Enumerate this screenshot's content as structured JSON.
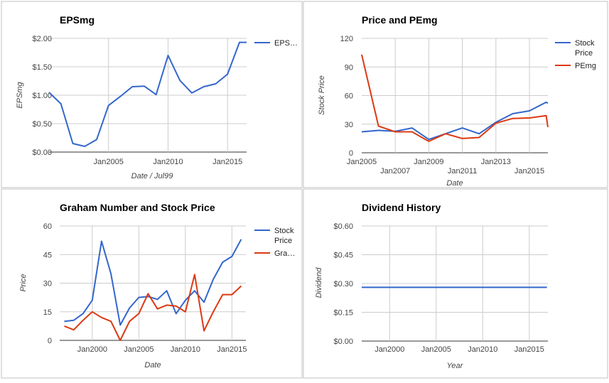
{
  "colors": {
    "blue": "#3366cc",
    "red": "#dc3912",
    "grid": "#cccccc",
    "axis_text": "#444444",
    "title_text": "#000000",
    "border": "#c0c0c0"
  },
  "chart_data": [
    {
      "type": "line",
      "title": "EPSmg",
      "xlabel": "Date / Jul99",
      "ylabel": "EPSmg",
      "x_ticks": [
        "Jan2005",
        "Jan2010",
        "Jan2015"
      ],
      "y_ticks": [
        "$0.00",
        "$0.50",
        "$1.00",
        "$1.50",
        "$2.00"
      ],
      "ylim": [
        0,
        2
      ],
      "xlim": [
        2000,
        2016.6
      ],
      "legend_position": "right",
      "series": [
        {
          "name": "EPS…",
          "color": "#3366cc",
          "x": [
            2000,
            2001,
            2002,
            2003,
            2004,
            2005,
            2006,
            2007,
            2008,
            2009,
            2010,
            2011,
            2012,
            2013,
            2014,
            2015,
            2016,
            2016.6
          ],
          "y": [
            1.05,
            0.85,
            0.15,
            0.1,
            0.22,
            0.82,
            0.98,
            1.15,
            1.16,
            1.01,
            1.7,
            1.26,
            1.04,
            1.15,
            1.2,
            1.37,
            1.93,
            1.93
          ]
        }
      ]
    },
    {
      "type": "line",
      "title": "Price and PEmg",
      "xlabel": "Date",
      "ylabel": "Stock Price",
      "x_ticks_row1": [
        "Jan2005",
        "Jan2009",
        "Jan2013"
      ],
      "x_ticks_row2": [
        "Jan2007",
        "Jan2011",
        "Jan2015"
      ],
      "y_ticks": [
        "0",
        "30",
        "60",
        "90",
        "120"
      ],
      "ylim": [
        0,
        120
      ],
      "xlim": [
        2005,
        2016.1
      ],
      "legend_position": "right",
      "series": [
        {
          "name": "Stock Price",
          "name_lines": [
            "Stock",
            "Price"
          ],
          "color": "#3366cc",
          "x": [
            2005,
            2006,
            2007,
            2008,
            2009,
            2010,
            2011,
            2012,
            2013,
            2014,
            2015,
            2016,
            2016.1
          ],
          "y": [
            22,
            23.5,
            22.5,
            26,
            14,
            20,
            26,
            20,
            32,
            41,
            44,
            53,
            52
          ]
        },
        {
          "name": "PEmg",
          "name_lines": [
            "PEmg"
          ],
          "color": "#dc3912",
          "x": [
            2005,
            2006,
            2007,
            2008,
            2009,
            2010,
            2011,
            2012,
            2013,
            2014,
            2015,
            2016,
            2016.1
          ],
          "y": [
            103,
            28,
            22,
            22,
            12,
            20,
            15,
            16,
            31,
            36,
            36.5,
            39,
            27
          ]
        }
      ]
    },
    {
      "type": "line",
      "title": "Graham Number and Stock Price",
      "xlabel": "Date",
      "ylabel": "Price",
      "x_ticks": [
        "Jan2000",
        "Jan2005",
        "Jan2010",
        "Jan2015"
      ],
      "y_ticks": [
        "0",
        "15",
        "30",
        "45",
        "60"
      ],
      "ylim": [
        0,
        60
      ],
      "xlim": [
        1996.5,
        2016.5
      ],
      "legend_position": "right",
      "series": [
        {
          "name": "Stock Price",
          "name_lines": [
            "Stock",
            "Price"
          ],
          "color": "#3366cc",
          "x": [
            1997,
            1998,
            1999,
            2000,
            2001,
            2002,
            2003,
            2004,
            2005,
            2006,
            2007,
            2008,
            2009,
            2010,
            2011,
            2012,
            2013,
            2014,
            2015,
            2016
          ],
          "y": [
            10,
            10.5,
            14,
            21,
            52,
            35,
            8,
            17,
            22.5,
            23,
            21.5,
            26,
            14,
            21,
            26,
            20,
            32,
            41,
            44,
            53
          ]
        },
        {
          "name": "Gra…",
          "name_lines": [
            "Gra…"
          ],
          "color": "#dc3912",
          "x": [
            1997,
            1998,
            1999,
            2000,
            2001,
            2002,
            2003,
            2004,
            2005,
            2006,
            2007,
            2008,
            2009,
            2010,
            2011,
            2012,
            2013,
            2014,
            2015,
            2016
          ],
          "y": [
            7.5,
            5.5,
            10.5,
            15,
            12,
            10,
            0,
            10,
            14,
            24.5,
            16.5,
            18.5,
            18,
            15,
            34.5,
            5,
            15,
            24,
            24,
            28.5
          ]
        }
      ]
    },
    {
      "type": "line",
      "title": "Dividend History",
      "xlabel": "Year",
      "ylabel": "Dividend",
      "x_ticks": [
        "Jan2000",
        "Jan2005",
        "Jan2010",
        "Jan2015"
      ],
      "y_ticks": [
        "$0.00",
        "$0.15",
        "$0.30",
        "$0.45",
        "$0.60"
      ],
      "ylim": [
        0,
        0.6
      ],
      "xlim": [
        1997,
        2017
      ],
      "legend_position": "none",
      "series": [
        {
          "name": "",
          "color": "#3366cc",
          "x": [
            1997,
            2016.9
          ],
          "y": [
            0.28,
            0.28
          ]
        }
      ]
    }
  ]
}
